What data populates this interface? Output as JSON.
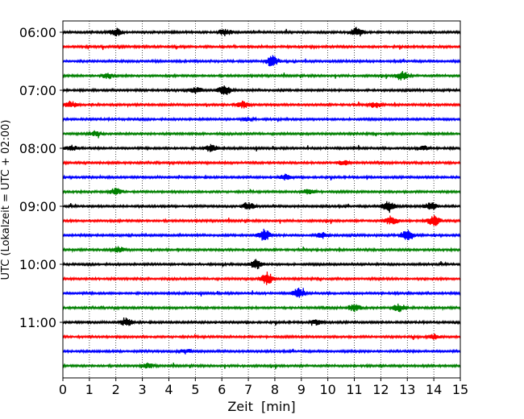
{
  "chart_data": {
    "type": "line",
    "title": "",
    "xlabel": "Zeit  [min]",
    "ylabel": "UTC (Lokalzeit = UTC + 02:00)",
    "xlim": [
      0,
      15
    ],
    "x_ticks": [
      "0",
      "1",
      "2",
      "3",
      "4",
      "5",
      "6",
      "7",
      "8",
      "9",
      "10",
      "11",
      "12",
      "13",
      "14",
      "15"
    ],
    "y_ticks": [
      "06:00",
      "07:00",
      "08:00",
      "09:00",
      "10:00",
      "11:00"
    ],
    "grid": "vertical dotted",
    "traces": {
      "start": "06:00",
      "interval_minutes": 15,
      "count": 24,
      "color_cycle": [
        "#000000",
        "#ff0000",
        "#0000ff",
        "#008000"
      ]
    },
    "events": [
      {
        "trace": 0,
        "minute": 2.0,
        "amp": 0.5
      },
      {
        "trace": 0,
        "minute": 6.1,
        "amp": 0.45
      },
      {
        "trace": 0,
        "minute": 11.1,
        "amp": 0.6
      },
      {
        "trace": 2,
        "minute": 7.9,
        "amp": 0.7
      },
      {
        "trace": 3,
        "minute": 12.8,
        "amp": 0.6
      },
      {
        "trace": 3,
        "minute": 1.7,
        "amp": 0.35
      },
      {
        "trace": 4,
        "minute": 6.1,
        "amp": 0.7
      },
      {
        "trace": 4,
        "minute": 5.0,
        "amp": 0.4
      },
      {
        "trace": 5,
        "minute": 6.8,
        "amp": 0.45
      },
      {
        "trace": 5,
        "minute": 0.3,
        "amp": 0.4
      },
      {
        "trace": 5,
        "minute": 11.8,
        "amp": 0.35
      },
      {
        "trace": 6,
        "minute": 7.0,
        "amp": 0.25
      },
      {
        "trace": 7,
        "minute": 1.2,
        "amp": 0.3
      },
      {
        "trace": 8,
        "minute": 5.6,
        "amp": 0.5
      },
      {
        "trace": 8,
        "minute": 0.3,
        "amp": 0.4
      },
      {
        "trace": 8,
        "minute": 13.6,
        "amp": 0.3
      },
      {
        "trace": 9,
        "minute": 10.6,
        "amp": 0.35
      },
      {
        "trace": 10,
        "minute": 8.4,
        "amp": 0.35
      },
      {
        "trace": 11,
        "minute": 2.0,
        "amp": 0.4
      },
      {
        "trace": 11,
        "minute": 9.3,
        "amp": 0.35
      },
      {
        "trace": 12,
        "minute": 7.0,
        "amp": 0.5
      },
      {
        "trace": 12,
        "minute": 12.3,
        "amp": 0.8
      },
      {
        "trace": 12,
        "minute": 13.9,
        "amp": 0.6
      },
      {
        "trace": 13,
        "minute": 12.4,
        "amp": 0.6
      },
      {
        "trace": 13,
        "minute": 14.0,
        "amp": 0.7
      },
      {
        "trace": 14,
        "minute": 7.6,
        "amp": 0.75
      },
      {
        "trace": 14,
        "minute": 13.0,
        "amp": 0.7
      },
      {
        "trace": 14,
        "minute": 9.8,
        "amp": 0.4
      },
      {
        "trace": 15,
        "minute": 2.1,
        "amp": 0.35
      },
      {
        "trace": 16,
        "minute": 7.3,
        "amp": 0.6
      },
      {
        "trace": 17,
        "minute": 7.7,
        "amp": 0.8
      },
      {
        "trace": 18,
        "minute": 8.9,
        "amp": 0.6
      },
      {
        "trace": 19,
        "minute": 11.0,
        "amp": 0.45
      },
      {
        "trace": 19,
        "minute": 12.7,
        "amp": 0.5
      },
      {
        "trace": 20,
        "minute": 2.4,
        "amp": 0.5
      },
      {
        "trace": 20,
        "minute": 9.6,
        "amp": 0.35
      },
      {
        "trace": 21,
        "minute": 14.0,
        "amp": 0.3
      },
      {
        "trace": 22,
        "minute": 4.6,
        "amp": 0.3
      },
      {
        "trace": 23,
        "minute": 3.2,
        "amp": 0.3
      }
    ]
  }
}
